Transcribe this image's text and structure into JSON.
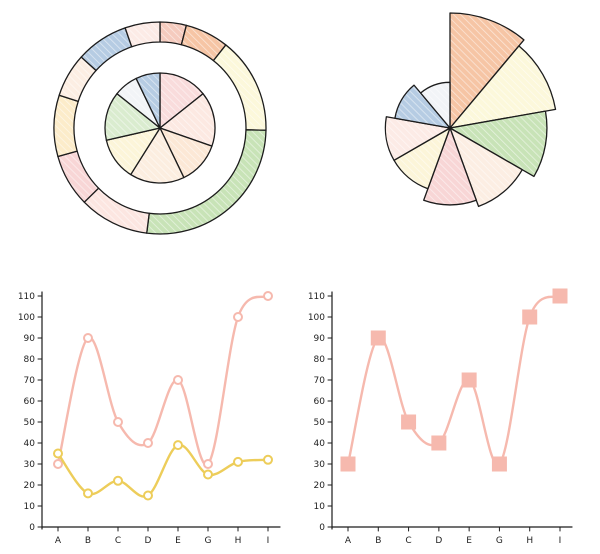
{
  "chart_data": [
    {
      "type": "pie",
      "subtype": "nested-donut",
      "outer_ring": {
        "values": [
          3,
          5,
          11,
          20,
          8,
          6,
          7,
          5,
          6,
          4
        ],
        "colors": [
          "#f2b9a8",
          "#f3b187",
          "#fbf5cf",
          "#b5d99f",
          "#fbded7",
          "#f6c8c8",
          "#fbe6b8",
          "#fbe8d9",
          "#9dbbd9",
          "#fbe4dd"
        ]
      },
      "inner_ring": {
        "values": [
          8,
          9,
          7,
          9,
          7,
          8,
          4,
          4
        ],
        "colors": [
          "#f7d0d0",
          "#fbe2d8",
          "#fbe0c8",
          "#fbe8d6",
          "#fbf2cc",
          "#cde6bf",
          "#eef0f4",
          "#9dbbd9"
        ]
      }
    },
    {
      "type": "pie",
      "subtype": "polar-area",
      "values": [
        38,
        33,
        27,
        20,
        17,
        12,
        12,
        9,
        6
      ],
      "colors": [
        "#f3b187",
        "#fbf5cf",
        "#b5d99f",
        "#fbe8d9",
        "#f6c8c8",
        "#fbf2cc",
        "#fbe4dd",
        "#9dbbd9",
        "#eef0f4"
      ]
    },
    {
      "type": "line",
      "categories": [
        "A",
        "B",
        "C",
        "D",
        "E",
        "G",
        "H",
        "I"
      ],
      "ylim": [
        0,
        110
      ],
      "yticks": [
        0,
        10,
        20,
        30,
        40,
        50,
        60,
        70,
        80,
        90,
        100,
        110
      ],
      "series": [
        {
          "values": [
            30,
            90,
            50,
            40,
            70,
            30,
            100,
            110
          ],
          "color": "#f6b9ae",
          "marker": "circle"
        },
        {
          "values": [
            35,
            16,
            22,
            15,
            39,
            25,
            31,
            32
          ],
          "color": "#edcd5a",
          "marker": "circle"
        }
      ]
    },
    {
      "type": "line",
      "categories": [
        "A",
        "B",
        "C",
        "D",
        "E",
        "G",
        "H",
        "I"
      ],
      "ylim": [
        0,
        110
      ],
      "yticks": [
        0,
        10,
        20,
        30,
        40,
        50,
        60,
        70,
        80,
        90,
        100,
        110
      ],
      "series": [
        {
          "values": [
            30,
            90,
            50,
            40,
            70,
            30,
            100,
            110
          ],
          "color": "#f6b9ae",
          "marker": "square"
        }
      ]
    }
  ]
}
